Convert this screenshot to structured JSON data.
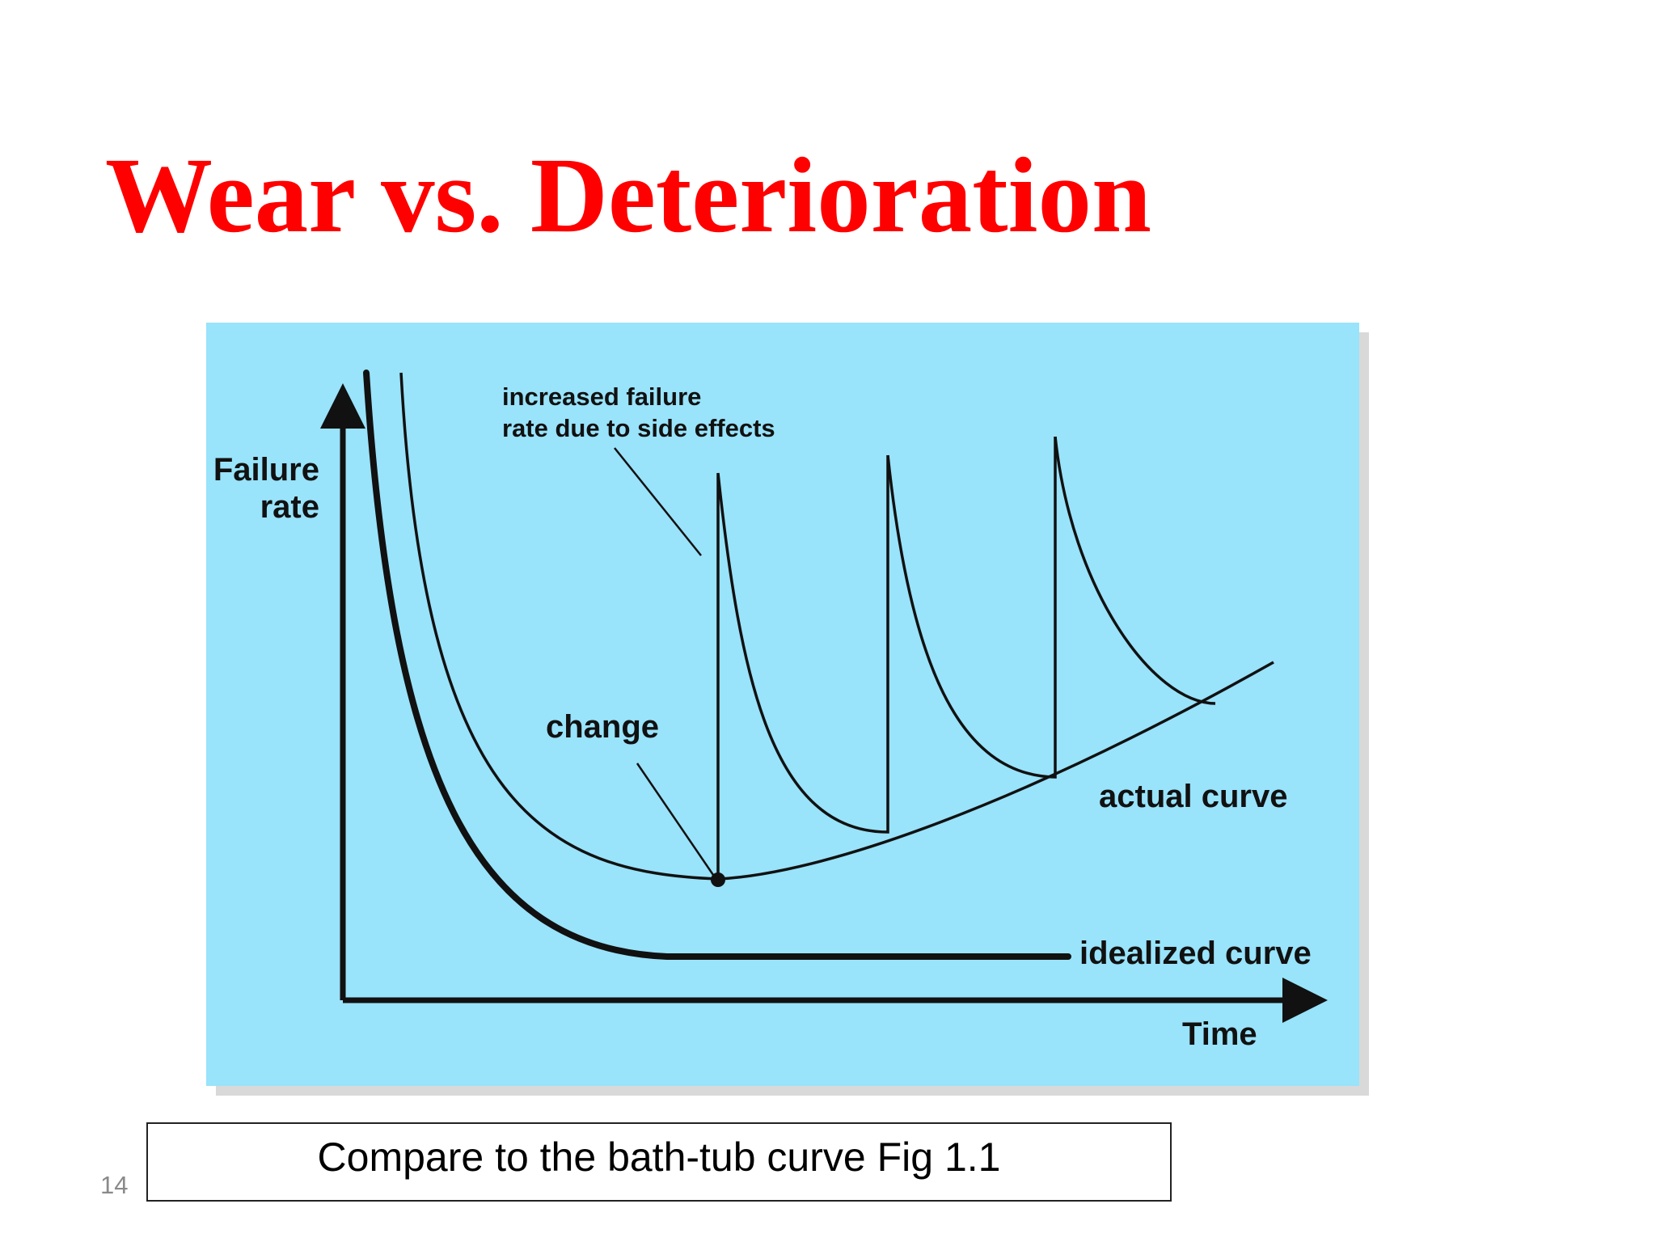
{
  "slide": {
    "title": "Wear vs. Deterioration",
    "page_number": "14",
    "caption": "Compare to the bath-tub curve Fig 1.1"
  },
  "figure": {
    "background_color": "#99e3fb",
    "line_color": "#111111",
    "y_axis_label_line1": "Failure",
    "y_axis_label_line2": "rate",
    "x_axis_label": "Time",
    "annotation_side_effects_line1": "increased failure",
    "annotation_side_effects_line2": "rate due to side effects",
    "annotation_change": "change",
    "label_actual_curve": "actual curve",
    "label_idealized_curve": "idealized curve"
  },
  "colors": {
    "title": "#ff0000",
    "page_number": "#8a8a8a"
  }
}
